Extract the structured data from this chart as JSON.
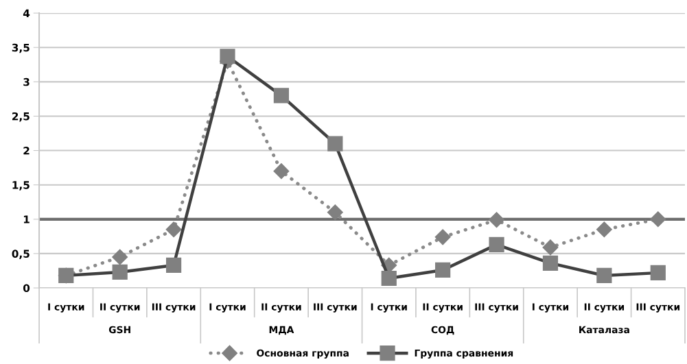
{
  "chart_data": {
    "type": "line",
    "categories": [
      "I сутки",
      "II сутки",
      "III сутки",
      "I сутки",
      "II сутки",
      "III сутки",
      "I сутки",
      "II сутки",
      "III сутки",
      "I сутки",
      "II сутки",
      "III сутки"
    ],
    "series": [
      {
        "name": "Основная группа",
        "color": "#8a8a8a",
        "marker": "diamond",
        "line_style": "dotted",
        "values": [
          0.18,
          0.45,
          0.85,
          3.3,
          1.7,
          1.1,
          0.33,
          0.74,
          0.99,
          0.59,
          0.85,
          1.0
        ]
      },
      {
        "name": "Группа сравнения",
        "color": "#404040",
        "marker": "square",
        "line_style": "solid",
        "values": [
          0.18,
          0.23,
          0.33,
          3.37,
          2.8,
          2.1,
          0.14,
          0.26,
          0.63,
          0.36,
          0.18,
          0.22
        ]
      }
    ],
    "annotations": [
      "GSH",
      "МДА",
      "СОД",
      "Каталаза"
    ],
    "ylim": [
      0,
      4
    ],
    "yticks": [
      0,
      {
        "value": 0.5,
        "label": "0,5"
      },
      1,
      {
        "value": 1.5,
        "label": "1,5"
      },
      2,
      {
        "value": 2.5,
        "label": "2,5"
      },
      3,
      {
        "value": 3.5,
        "label": "3,5"
      },
      4
    ],
    "ref_lines": [
      {
        "axis": "y",
        "value": 1,
        "label": null,
        "color": "#6d6d6d"
      }
    ],
    "grid": "y",
    "legend": "bottom"
  }
}
